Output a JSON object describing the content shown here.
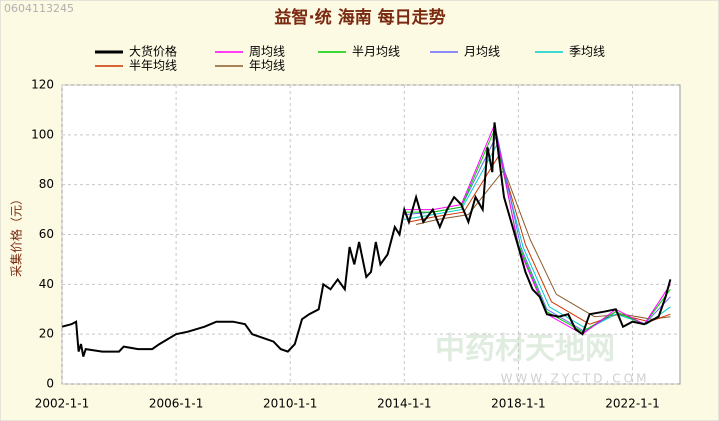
{
  "chart_data": {
    "type": "line",
    "watermark_id": "0604113245",
    "title": "益智·统 海南 每日走势",
    "y_label": "采集价格（元）",
    "watermark_logo": "中药材天地网",
    "watermark_url": "WWW.ZYCTD.COM",
    "xlim": [
      "2002-1-1",
      "2023-9-1"
    ],
    "xticks": [
      "2002-1-1",
      "2006-1-1",
      "2010-1-1",
      "2014-1-1",
      "2018-1-1",
      "2022-1-1"
    ],
    "ylim": [
      0,
      120
    ],
    "yticks": [
      0,
      20,
      40,
      60,
      80,
      100,
      120
    ],
    "grid": true,
    "series": [
      {
        "name": "大货价格",
        "color": "#000000",
        "x": [
          "2002-1-1",
          "2002-5-1",
          "2002-7-1",
          "2002-8-1",
          "2002-9-1",
          "2002-10-1",
          "2002-11-1",
          "2003-6-1",
          "2004-1-1",
          "2004-3-1",
          "2004-9-1",
          "2005-3-1",
          "2005-6-1",
          "2006-1-1",
          "2006-6-1",
          "2007-1-1",
          "2007-6-1",
          "2008-1-1",
          "2008-6-1",
          "2008-9-1",
          "2009-3-1",
          "2009-6-1",
          "2009-9-1",
          "2009-12-1",
          "2010-3-1",
          "2010-6-1",
          "2010-9-1",
          "2011-1-1",
          "2011-3-1",
          "2011-6-1",
          "2011-9-1",
          "2011-12-1",
          "2012-2-1",
          "2012-4-1",
          "2012-6-1",
          "2012-9-1",
          "2012-11-1",
          "2013-1-1",
          "2013-3-1",
          "2013-6-1",
          "2013-9-1",
          "2013-11-1",
          "2014-1-1",
          "2014-3-1",
          "2014-6-1",
          "2014-9-1",
          "2015-1-1",
          "2015-4-1",
          "2015-7-1",
          "2015-10-1",
          "2016-1-1",
          "2016-4-1",
          "2016-7-1",
          "2016-10-1",
          "2016-12-1",
          "2017-2-1",
          "2017-3-1",
          "2017-5-1",
          "2017-7-1",
          "2017-10-1",
          "2018-1-1",
          "2018-4-1",
          "2018-7-1",
          "2018-10-1",
          "2019-1-1",
          "2019-6-1",
          "2019-10-1",
          "2020-1-1",
          "2020-4-1",
          "2020-7-1",
          "2021-1-1",
          "2021-6-1",
          "2021-9-1",
          "2022-1-1",
          "2022-6-1",
          "2022-12-1",
          "2023-3-1",
          "2023-5-1"
        ],
        "values": [
          23,
          24,
          25,
          13,
          16,
          11,
          14,
          13,
          13,
          15,
          14,
          14,
          16,
          20,
          21,
          23,
          25,
          25,
          24,
          20,
          18,
          17,
          14,
          13,
          16,
          26,
          28,
          30,
          40,
          38,
          42,
          38,
          55,
          48,
          57,
          43,
          45,
          57,
          48,
          52,
          63,
          60,
          70,
          65,
          75,
          65,
          70,
          63,
          70,
          75,
          72,
          65,
          75,
          70,
          95,
          85,
          105,
          90,
          75,
          65,
          55,
          45,
          38,
          35,
          28,
          27,
          28,
          22,
          20,
          28,
          29,
          30,
          23,
          25,
          24,
          27,
          35,
          42
        ]
      },
      {
        "name": "周均线",
        "color": "#ff00ff",
        "x": [
          "2014-1-1",
          "2015-1-1",
          "2016-1-1",
          "2017-3-1",
          "2018-1-1",
          "2019-1-1",
          "2020-4-1",
          "2021-6-1",
          "2022-6-1",
          "2023-5-1"
        ],
        "values": [
          70,
          70,
          72,
          104,
          55,
          28,
          20,
          30,
          24,
          40
        ]
      },
      {
        "name": "半月均线",
        "color": "#00cc00",
        "x": [
          "2014-1-1",
          "2015-1-1",
          "2016-1-1",
          "2017-3-1",
          "2018-1-1",
          "2019-1-1",
          "2020-4-1",
          "2021-6-1",
          "2022-6-1",
          "2023-5-1"
        ],
        "values": [
          69,
          69,
          71,
          102,
          56,
          29,
          21,
          29,
          24,
          38
        ]
      },
      {
        "name": "月均线",
        "color": "#6666ff",
        "x": [
          "2014-1-1",
          "2015-1-1",
          "2016-1-1",
          "2017-4-1",
          "2018-2-1",
          "2019-1-1",
          "2020-5-1",
          "2021-6-1",
          "2022-6-1",
          "2023-5-1"
        ],
        "values": [
          68,
          69,
          71,
          100,
          55,
          30,
          21,
          29,
          24,
          35
        ]
      },
      {
        "name": "季均线",
        "color": "#00cccc",
        "x": [
          "2014-1-1",
          "2015-1-1",
          "2016-1-1",
          "2017-4-1",
          "2018-3-1",
          "2019-2-1",
          "2020-6-1",
          "2021-6-1",
          "2022-7-1",
          "2023-5-1"
        ],
        "values": [
          66,
          68,
          70,
          96,
          55,
          31,
          22,
          28,
          24,
          31
        ]
      },
      {
        "name": "半年均线",
        "color": "#cc3300",
        "x": [
          "2014-3-1",
          "2015-1-1",
          "2016-2-1",
          "2017-5-1",
          "2018-4-1",
          "2019-3-1",
          "2020-7-1",
          "2021-7-1",
          "2022-8-1",
          "2023-5-1"
        ],
        "values": [
          65,
          67,
          69,
          92,
          56,
          33,
          24,
          28,
          25,
          28
        ]
      },
      {
        "name": "年均线",
        "color": "#8b5a2b",
        "x": [
          "2014-6-1",
          "2015-3-1",
          "2016-4-1",
          "2017-7-1",
          "2018-6-1",
          "2019-5-1",
          "2020-9-1",
          "2021-9-1",
          "2022-9-1",
          "2023-5-1"
        ],
        "values": [
          64,
          66,
          68,
          86,
          58,
          36,
          27,
          28,
          26,
          27
        ]
      }
    ]
  }
}
